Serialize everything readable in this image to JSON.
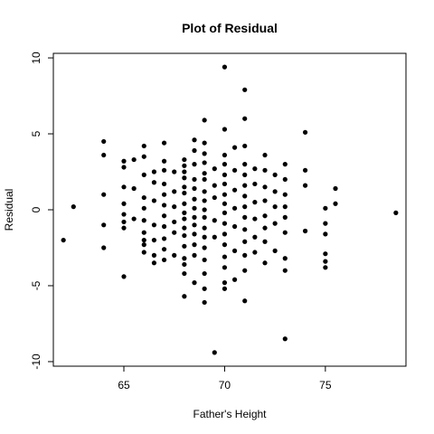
{
  "chart_data": {
    "type": "scatter",
    "title": "Plot of Residual",
    "xlabel": "Father's Height",
    "ylabel": "Residual",
    "xlim": [
      61.5,
      79.0
    ],
    "ylim": [
      -10.3,
      10.3
    ],
    "xticks": [
      65,
      70,
      75
    ],
    "yticks": [
      -10,
      -5,
      0,
      5,
      10
    ],
    "grid": false,
    "legend": "none",
    "series": [
      {
        "points": [
          [
            62,
            -2
          ],
          [
            62.5,
            0.2
          ],
          [
            64,
            4.5
          ],
          [
            64,
            3.6
          ],
          [
            64,
            1
          ],
          [
            64,
            -1
          ],
          [
            64,
            -2.5
          ],
          [
            65,
            3.2
          ],
          [
            65,
            2.8
          ],
          [
            65,
            1.5
          ],
          [
            65,
            0.4
          ],
          [
            65,
            -0.3
          ],
          [
            65,
            -0.8
          ],
          [
            65,
            -1.2
          ],
          [
            65,
            -4.4
          ],
          [
            65.5,
            3.3
          ],
          [
            65.5,
            1.4
          ],
          [
            65.5,
            -0.6
          ],
          [
            66,
            4.2
          ],
          [
            66,
            3.5
          ],
          [
            66,
            2.3
          ],
          [
            66,
            0.8
          ],
          [
            66,
            0.1
          ],
          [
            66,
            -0.7
          ],
          [
            66,
            -1.5
          ],
          [
            66,
            -2
          ],
          [
            66,
            -2.3
          ],
          [
            66,
            -2.8
          ],
          [
            66.5,
            2.5
          ],
          [
            66.5,
            1.8
          ],
          [
            66.5,
            0.6
          ],
          [
            66.5,
            -1
          ],
          [
            66.5,
            -2
          ],
          [
            66.5,
            -3
          ],
          [
            66.5,
            -3.5
          ],
          [
            67,
            4.4
          ],
          [
            67,
            3.2
          ],
          [
            67,
            2.6
          ],
          [
            67,
            1.7
          ],
          [
            67,
            1
          ],
          [
            67,
            0.3
          ],
          [
            67,
            -0.4
          ],
          [
            67,
            -1.1
          ],
          [
            67,
            -1.9
          ],
          [
            67,
            -2.6
          ],
          [
            67,
            -3.3
          ],
          [
            67.5,
            2.5
          ],
          [
            67.5,
            1.2
          ],
          [
            67.5,
            0.2
          ],
          [
            67.5,
            -0.8
          ],
          [
            67.5,
            -1.5
          ],
          [
            67.5,
            -3
          ],
          [
            68,
            3.3
          ],
          [
            68,
            2.9
          ],
          [
            68,
            2.5
          ],
          [
            68,
            2.1
          ],
          [
            68,
            1.5
          ],
          [
            68,
            1.1
          ],
          [
            68,
            0.4
          ],
          [
            68,
            -0.2
          ],
          [
            68,
            -0.6
          ],
          [
            68,
            -1.2
          ],
          [
            68,
            -1.7
          ],
          [
            68,
            -2.4
          ],
          [
            68,
            -3.2
          ],
          [
            68,
            -3.6
          ],
          [
            68,
            -4.2
          ],
          [
            68,
            -5.7
          ],
          [
            68.5,
            4.6
          ],
          [
            68.5,
            3.9
          ],
          [
            68.5,
            3
          ],
          [
            68.5,
            2
          ],
          [
            68.5,
            1.4
          ],
          [
            68.5,
            0.7
          ],
          [
            68.5,
            0.1
          ],
          [
            68.5,
            -0.5
          ],
          [
            68.5,
            -1
          ],
          [
            68.5,
            -1.6
          ],
          [
            68.5,
            -2.3
          ],
          [
            68.5,
            -3
          ],
          [
            68.5,
            -4.8
          ],
          [
            69,
            5.9
          ],
          [
            69,
            4.4
          ],
          [
            69,
            3.7
          ],
          [
            69,
            3.1
          ],
          [
            69,
            2.4
          ],
          [
            69,
            2
          ],
          [
            69,
            1.2
          ],
          [
            69,
            0.6
          ],
          [
            69,
            0
          ],
          [
            69,
            -0.5
          ],
          [
            69,
            -1.2
          ],
          [
            69,
            -1.8
          ],
          [
            69,
            -2.5
          ],
          [
            69,
            -3.3
          ],
          [
            69,
            -4.2
          ],
          [
            69,
            -5.2
          ],
          [
            69,
            -6.1
          ],
          [
            69.5,
            2.7
          ],
          [
            69.5,
            1.6
          ],
          [
            69.5,
            0.8
          ],
          [
            69.5,
            -0.7
          ],
          [
            69.5,
            -1.8
          ],
          [
            69.5,
            -9.4
          ],
          [
            70,
            9.4
          ],
          [
            70,
            5.3
          ],
          [
            70,
            3.6
          ],
          [
            70,
            3
          ],
          [
            70,
            2.3
          ],
          [
            70,
            1.7
          ],
          [
            70,
            1
          ],
          [
            70,
            0.4
          ],
          [
            70,
            -0.2
          ],
          [
            70,
            -0.9
          ],
          [
            70,
            -1.6
          ],
          [
            70,
            -2.3
          ],
          [
            70,
            -3.1
          ],
          [
            70,
            -3.8
          ],
          [
            70,
            -4.8
          ],
          [
            70,
            -5.2
          ],
          [
            70.5,
            4.1
          ],
          [
            70.5,
            2.6
          ],
          [
            70.5,
            1.3
          ],
          [
            70.5,
            0.1
          ],
          [
            70.5,
            -1.1
          ],
          [
            70.5,
            -2.7
          ],
          [
            70.5,
            -4.6
          ],
          [
            71,
            7.9
          ],
          [
            71,
            6
          ],
          [
            71,
            4.2
          ],
          [
            71,
            3
          ],
          [
            71,
            2.3
          ],
          [
            71,
            1.6
          ],
          [
            71,
            0.9
          ],
          [
            71,
            0.2
          ],
          [
            71,
            -0.5
          ],
          [
            71,
            -1.3
          ],
          [
            71,
            -2.1
          ],
          [
            71,
            -3
          ],
          [
            71,
            -4
          ],
          [
            71,
            -6
          ],
          [
            71.5,
            2.7
          ],
          [
            71.5,
            1.7
          ],
          [
            71.5,
            0.5
          ],
          [
            71.5,
            -0.6
          ],
          [
            71.5,
            -1.8
          ],
          [
            71.5,
            -2.8
          ],
          [
            72,
            3.6
          ],
          [
            72,
            2.6
          ],
          [
            72,
            1.5
          ],
          [
            72,
            0.6
          ],
          [
            72,
            -0.4
          ],
          [
            72,
            -1.2
          ],
          [
            72,
            -2.1
          ],
          [
            72,
            -3.5
          ],
          [
            72.5,
            2.3
          ],
          [
            72.5,
            1.2
          ],
          [
            72.5,
            0.2
          ],
          [
            72.5,
            -0.9
          ],
          [
            72.5,
            -2.7
          ],
          [
            73,
            3
          ],
          [
            73,
            2
          ],
          [
            73,
            1
          ],
          [
            73,
            0.2
          ],
          [
            73,
            -0.5
          ],
          [
            73,
            -1.5
          ],
          [
            73,
            -3.2
          ],
          [
            73,
            -4
          ],
          [
            73,
            -8.5
          ],
          [
            74,
            5.1
          ],
          [
            74,
            2.6
          ],
          [
            74,
            1.6
          ],
          [
            74,
            -1.4
          ],
          [
            75,
            0.1
          ],
          [
            75,
            -0.9
          ],
          [
            75,
            -1.6
          ],
          [
            75,
            -2.9
          ],
          [
            75,
            -3.4
          ],
          [
            75,
            -3.8
          ],
          [
            75.5,
            1.4
          ],
          [
            75.5,
            0.4
          ],
          [
            78.5,
            -0.2
          ]
        ]
      }
    ]
  }
}
